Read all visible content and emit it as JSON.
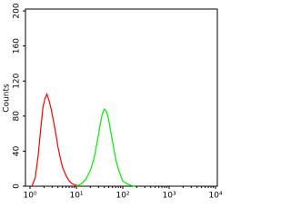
{
  "chart_data": {
    "type": "line",
    "y_label": "Counts",
    "xscale": "log",
    "xlim": [
      1,
      10000
    ],
    "xticks": [
      {
        "value": 1,
        "label": "10⁰"
      },
      {
        "value": 10,
        "label": "10¹"
      },
      {
        "value": 100,
        "label": "10²"
      },
      {
        "value": 1000,
        "label": "10³"
      },
      {
        "value": 10000,
        "label": "10⁴"
      }
    ],
    "ylim": [
      0,
      200
    ],
    "yticks": [
      0,
      40,
      80,
      120,
      160,
      200
    ],
    "series": [
      {
        "color": "#ff0000",
        "x": [
          1.1,
          1.3,
          1.5,
          1.7,
          1.9,
          2.1,
          2.3,
          2.5,
          2.8,
          3.2,
          3.6,
          4,
          4.5,
          5,
          6,
          7,
          8,
          10,
          12
        ],
        "values": [
          0,
          10,
          35,
          65,
          90,
          100,
          105,
          100,
          90,
          75,
          60,
          45,
          32,
          22,
          12,
          6,
          3,
          1,
          0
        ]
      },
      {
        "color": "#00ee00",
        "x": [
          10,
          13,
          16,
          20,
          24,
          28,
          32,
          36,
          40,
          45,
          50,
          56,
          63,
          71,
          80,
          90,
          100,
          120,
          150,
          180
        ],
        "values": [
          0,
          3,
          8,
          18,
          32,
          50,
          68,
          82,
          88,
          85,
          75,
          60,
          45,
          30,
          20,
          12,
          6,
          3,
          1,
          0
        ]
      }
    ]
  }
}
